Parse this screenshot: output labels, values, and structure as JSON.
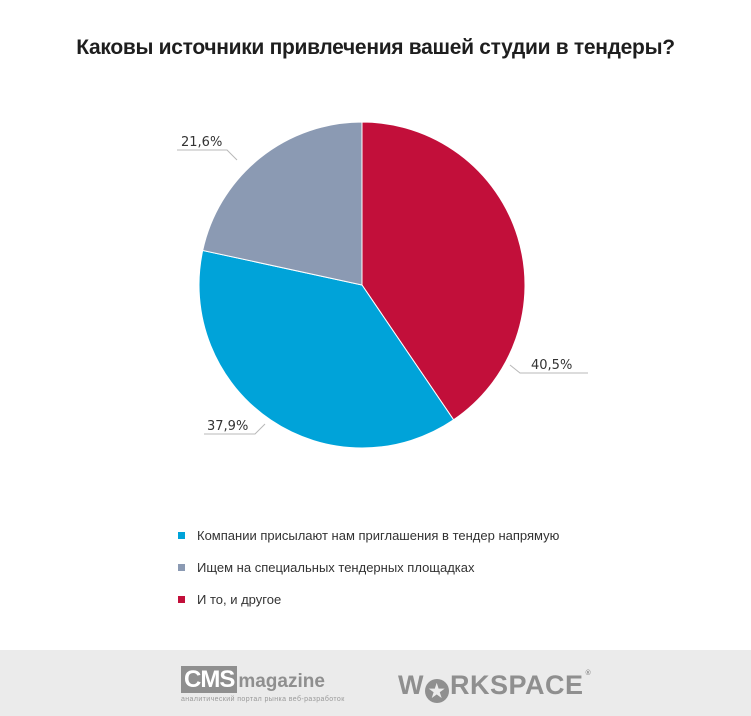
{
  "header": {
    "title": "Каковы источники привлечения вашей студии в тендеры?"
  },
  "chart_data": {
    "type": "pie",
    "title": "Каковы источники привлечения вашей студии в тендеры?",
    "categories": [
      "И то, и другое",
      "Компании присылают нам приглашения в тендер напрямую",
      "Ищем на специальных тендерных площадках"
    ],
    "values": [
      40.5,
      37.9,
      21.6
    ],
    "labels": [
      "40,5%",
      "37,9%",
      "21,6%"
    ],
    "colors": [
      "#c20f3a",
      "#00a3d9",
      "#8b9ab3"
    ],
    "start_angle_deg": 0,
    "direction": "clockwise",
    "legend_position": "bottom"
  },
  "labels": {
    "red": "40,5%",
    "blue": "37,9%",
    "gray": "21,6%"
  },
  "legend": {
    "items": [
      {
        "label": "Компании присылают нам приглашения в тендер напрямую",
        "color": "#00a3d9"
      },
      {
        "label": "Ищем на специальных тендерных площадках",
        "color": "#8b9ab3"
      },
      {
        "label": "И то, и другое",
        "color": "#c20f3a"
      }
    ]
  },
  "footer": {
    "cms_box": "CMS",
    "cms_word": "magazine",
    "cms_tagline": "аналитический портал рынка веб-разработок",
    "ws_pre": "W",
    "ws_star": "★",
    "ws_post": "RKSPACE",
    "ws_reg": "®"
  }
}
